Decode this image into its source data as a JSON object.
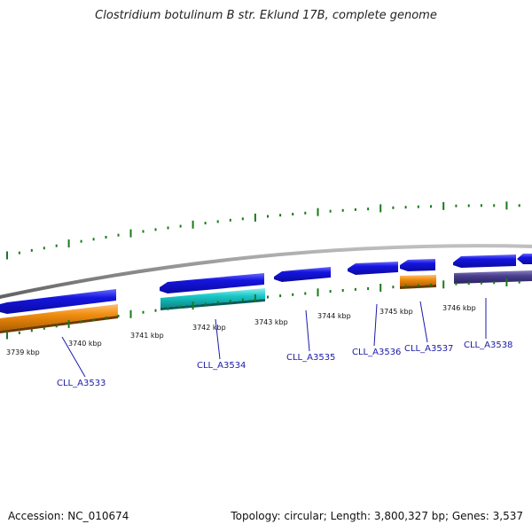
{
  "title": "Clostridium botulinum B str. Eklund 17B, complete genome",
  "footer": {
    "accession": "Accession: NC_010674",
    "summary": "Topology: circular; Length: 3,800,327 bp; Genes: 3,537"
  },
  "colors": {
    "backbone": "#8a8a8a",
    "ticks": "#1a7a1a",
    "gene_blue": "#1515e0",
    "gene_orange": "#f08c10",
    "gene_cyan": "#18c8c8",
    "gene_purple": "#4a4090",
    "label": "#1a1aa8"
  },
  "scale": {
    "labels": [
      "3739 kbp",
      "3740 kbp",
      "3741 kbp",
      "3742 kbp",
      "3743 kbp",
      "3744 kbp",
      "3745 kbp",
      "3746 kbp"
    ]
  },
  "genes": [
    {
      "label": "CLL_A3533"
    },
    {
      "label": "CLL_A3534"
    },
    {
      "label": "CLL_A3535"
    },
    {
      "label": "CLL_A3536"
    },
    {
      "label": "CLL_A3537"
    },
    {
      "label": "CLL_A3538"
    }
  ]
}
